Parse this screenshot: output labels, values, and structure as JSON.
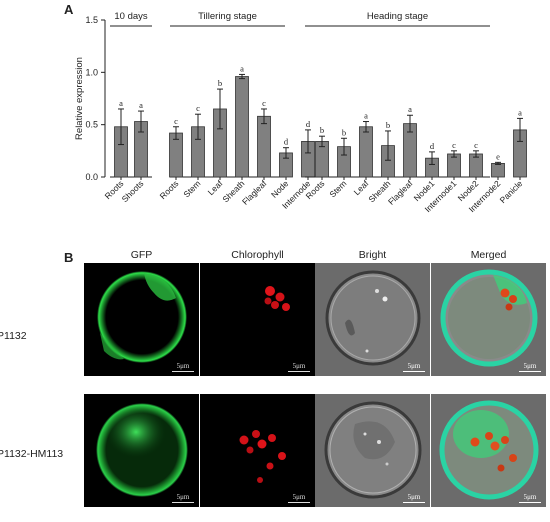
{
  "panel_a_label": "A",
  "panel_b_label": "B",
  "chart_data": {
    "type": "bar",
    "title": "",
    "xlabel": "",
    "ylabel": "Relative expression",
    "ylim": [
      0,
      1.5
    ],
    "yticks": [
      "0.0",
      "0.5",
      "1.0",
      "1.5"
    ],
    "grid": false,
    "bar_color": "#808080",
    "groups": [
      {
        "label": "10 days",
        "categories": [
          "Roots",
          "Shoots"
        ],
        "values": [
          0.48,
          0.53
        ],
        "errors": [
          0.17,
          0.1
        ],
        "letters": [
          "a",
          "a"
        ]
      },
      {
        "label": "Tillering stage",
        "categories": [
          "Roots",
          "Stem",
          "Leaf",
          "Sheath",
          "Flagleaf",
          "Node",
          "Internode"
        ],
        "values": [
          0.42,
          0.48,
          0.65,
          0.96,
          0.58,
          0.23,
          0.34
        ],
        "errors": [
          0.06,
          0.12,
          0.19,
          0.02,
          0.07,
          0.05,
          0.11
        ],
        "letters": [
          "c",
          "c",
          "b",
          "a",
          "c",
          "d",
          "d"
        ]
      },
      {
        "label": "Heading stage",
        "categories": [
          "Roots",
          "Stem",
          "Leaf",
          "Sheath",
          "Flagleaf",
          "Node1",
          "Internode1",
          "Node2",
          "Internode2",
          "Panicle"
        ],
        "values": [
          0.34,
          0.29,
          0.48,
          0.3,
          0.51,
          0.18,
          0.22,
          0.22,
          0.13,
          0.45
        ],
        "errors": [
          0.05,
          0.08,
          0.05,
          0.14,
          0.08,
          0.06,
          0.03,
          0.03,
          0.01,
          0.11
        ],
        "letters": [
          "b",
          "b",
          "a",
          "b",
          "a",
          "d",
          "c",
          "c",
          "e",
          "a"
        ]
      }
    ]
  },
  "microscopy": {
    "columns": [
      "GFP",
      "Chlorophyll",
      "Bright",
      "Merged"
    ],
    "rows": [
      "P1132",
      "P1132-HM113"
    ],
    "scale_label": "5μm"
  }
}
